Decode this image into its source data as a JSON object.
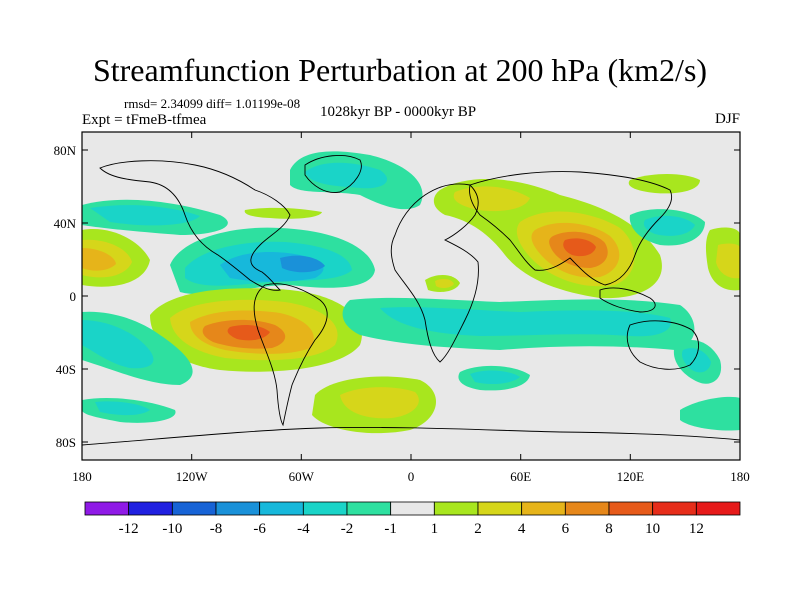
{
  "header": {
    "title": "Streamfunction Perturbation at 200 hPa (km2/s)",
    "stats": "rmsd= 2.34099 diff= 1.01199e-08",
    "left_label": "Expt = tFmeB-tfmea",
    "center_label": "1028kyr BP - 0000kyr BP",
    "right_label": "DJF"
  },
  "map": {
    "lat_ticks": [
      "80N",
      "40N",
      "0",
      "40S",
      "80S"
    ],
    "lon_ticks": [
      "180",
      "120W",
      "60W",
      "0",
      "60E",
      "120E",
      "180"
    ]
  },
  "colorbar": {
    "labels": [
      "-12",
      "-10",
      "-8",
      "-6",
      "-4",
      "-2",
      "-1",
      "1",
      "2",
      "4",
      "6",
      "8",
      "10",
      "12"
    ],
    "colors": [
      "#8f1ae6",
      "#2020e0",
      "#1763d6",
      "#1a91d9",
      "#17b8db",
      "#1ad4c8",
      "#2ee0a0",
      "#e8e8e8",
      "#a8e61e",
      "#d6d61a",
      "#e6b41a",
      "#e6871a",
      "#e65a1a",
      "#e62d1a",
      "#e61a1a"
    ]
  },
  "colors": {
    "neutral": "#e8e8e8",
    "coast": "#000000"
  }
}
